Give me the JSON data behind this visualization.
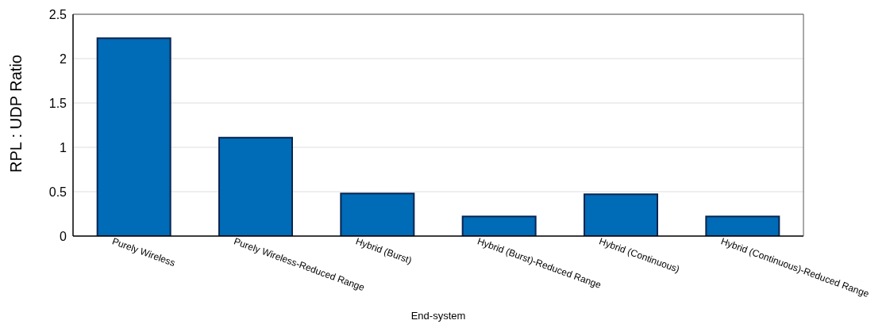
{
  "chart_data": {
    "type": "bar",
    "xlabel": "End-system",
    "ylabel": "RPL : UDP Ratio",
    "categories": [
      "Purely Wireless",
      "Purely Wireless-Reduced Range",
      "Hybrid (Burst)",
      "Hybrid (Burst)-Reduced Range",
      "Hybrid (Continuous)",
      "Hybrid (Continuous)-Reduced Range"
    ],
    "values": [
      2.23,
      1.11,
      0.48,
      0.22,
      0.47,
      0.22
    ],
    "color": "#006bb6",
    "ylim": [
      0,
      2.5
    ],
    "yticks": [
      0,
      0.5,
      1,
      1.5,
      2,
      2.5
    ],
    "grid": "y"
  }
}
